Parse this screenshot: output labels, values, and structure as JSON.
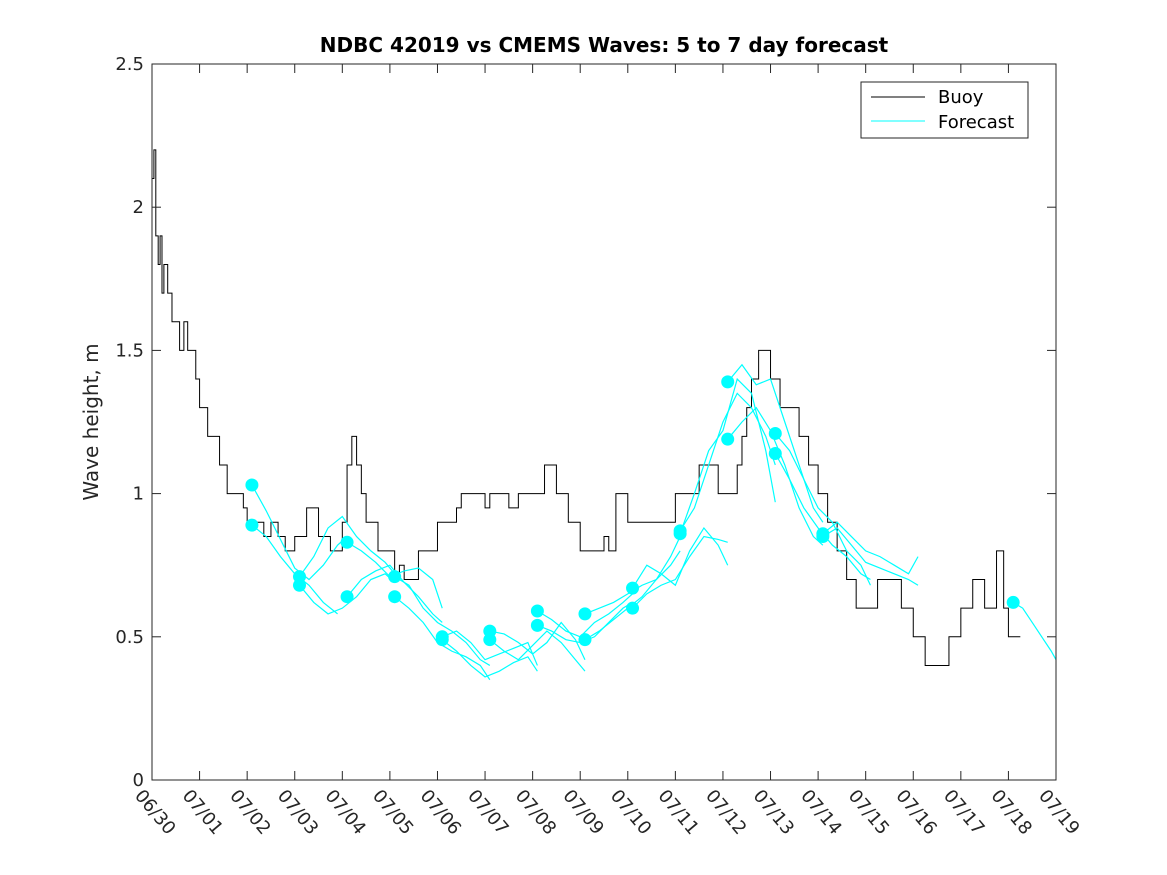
{
  "chart_data": {
    "type": "line",
    "title": "NDBC 42019 vs CMEMS Waves: 5 to 7 day forecast",
    "xlabel": "",
    "ylabel": "Wave height, m",
    "x_ticks": [
      "06/30",
      "07/01",
      "07/02",
      "07/03",
      "07/04",
      "07/05",
      "07/06",
      "07/07",
      "07/08",
      "07/09",
      "07/10",
      "07/11",
      "07/12",
      "07/13",
      "07/14",
      "07/15",
      "07/16",
      "07/17",
      "07/18",
      "07/19"
    ],
    "y_ticks": [
      "0",
      "0.5",
      "1",
      "1.5",
      "2",
      "2.5"
    ],
    "xlim": [
      0,
      19
    ],
    "ylim": [
      0,
      2.5
    ],
    "grid": false,
    "legend_position": "top-right",
    "colors": {
      "buoy": "#000000",
      "forecast": "#00ffff"
    },
    "series": [
      {
        "name": "Buoy",
        "x_days": [
          0.0,
          0.04,
          0.08,
          0.13,
          0.17,
          0.21,
          0.25,
          0.29,
          0.33,
          0.38,
          0.42,
          0.5,
          0.58,
          0.67,
          0.75,
          0.83,
          0.92,
          1.0,
          1.08,
          1.17,
          1.25,
          1.33,
          1.42,
          1.5,
          1.58,
          1.67,
          1.75,
          1.83,
          1.92,
          2.0,
          2.1,
          2.2,
          2.35,
          2.5,
          2.65,
          2.8,
          3.0,
          3.25,
          3.5,
          3.75,
          4.0,
          4.1,
          4.2,
          4.3,
          4.4,
          4.5,
          4.6,
          4.75,
          4.9,
          5.0,
          5.1,
          5.2,
          5.3,
          5.4,
          5.5,
          5.6,
          5.75,
          5.9,
          6.0,
          6.2,
          6.4,
          6.5,
          6.65,
          6.8,
          7.0,
          7.1,
          7.25,
          7.5,
          7.7,
          7.9,
          8.0,
          8.25,
          8.5,
          8.75,
          9.0,
          9.25,
          9.5,
          9.6,
          9.7,
          9.75,
          9.8,
          9.85,
          10.0,
          10.25,
          10.5,
          10.75,
          11.0,
          11.1,
          11.2,
          11.3,
          11.5,
          11.7,
          11.9,
          12.0,
          12.1,
          12.2,
          12.3,
          12.4,
          12.5,
          12.6,
          12.75,
          13.0,
          13.2,
          13.4,
          13.6,
          13.8,
          14.0,
          14.2,
          14.4,
          14.6,
          14.8,
          15.0,
          15.25,
          15.5,
          15.75,
          16.0,
          16.25,
          16.5,
          16.75,
          17.0,
          17.25,
          17.5,
          17.75,
          17.9,
          18.0,
          18.25
        ],
        "y": [
          2.1,
          2.2,
          1.9,
          1.8,
          1.9,
          1.7,
          1.8,
          1.8,
          1.7,
          1.7,
          1.6,
          1.6,
          1.5,
          1.6,
          1.5,
          1.5,
          1.4,
          1.3,
          1.3,
          1.2,
          1.2,
          1.2,
          1.1,
          1.1,
          1.0,
          1.0,
          1.0,
          1.0,
          0.95,
          0.9,
          0.9,
          0.9,
          0.85,
          0.9,
          0.85,
          0.8,
          0.85,
          0.95,
          0.85,
          0.8,
          0.9,
          1.1,
          1.2,
          1.1,
          1.0,
          0.9,
          0.9,
          0.8,
          0.8,
          0.8,
          0.7,
          0.75,
          0.7,
          0.7,
          0.7,
          0.8,
          0.8,
          0.8,
          0.9,
          0.9,
          0.95,
          1.0,
          1.0,
          1.0,
          0.95,
          1.0,
          1.0,
          0.95,
          1.0,
          1.0,
          1.0,
          1.1,
          1.0,
          0.9,
          0.8,
          0.8,
          0.85,
          0.8,
          0.8,
          1.0,
          1.0,
          1.0,
          0.9,
          0.9,
          0.9,
          0.9,
          1.0,
          1.0,
          1.0,
          1.0,
          1.1,
          1.1,
          1.0,
          1.0,
          1.0,
          1.0,
          1.1,
          1.2,
          1.3,
          1.4,
          1.5,
          1.4,
          1.3,
          1.3,
          1.2,
          1.1,
          1.0,
          0.9,
          0.8,
          0.7,
          0.6,
          0.6,
          0.7,
          0.7,
          0.6,
          0.5,
          0.4,
          0.4,
          0.5,
          0.6,
          0.7,
          0.6,
          0.8,
          0.6,
          0.5,
          0.5
        ]
      },
      {
        "name": "Forecast",
        "segments": [
          {
            "x": [
              2.1,
              2.4,
              2.7,
              3.0,
              3.3,
              3.6,
              3.9,
              4.1
            ],
            "y": [
              1.03,
              0.94,
              0.84,
              0.74,
              0.7,
              0.75,
              0.82,
              0.85
            ]
          },
          {
            "x": [
              2.1,
              2.4,
              2.7,
              3.0,
              3.3,
              3.6,
              3.9
            ],
            "y": [
              0.89,
              0.85,
              0.78,
              0.72,
              0.68,
              0.62,
              0.58
            ]
          },
          {
            "x": [
              3.1,
              3.4,
              3.7,
              4.0,
              4.3,
              4.6,
              4.9,
              5.1
            ],
            "y": [
              0.71,
              0.78,
              0.88,
              0.92,
              0.85,
              0.8,
              0.76,
              0.72
            ]
          },
          {
            "x": [
              3.1,
              3.4,
              3.7,
              4.0,
              4.3,
              4.6,
              4.9,
              5.1
            ],
            "y": [
              0.68,
              0.62,
              0.58,
              0.6,
              0.64,
              0.7,
              0.72,
              0.69
            ]
          },
          {
            "x": [
              4.1,
              4.4,
              4.7,
              5.0,
              5.3,
              5.6,
              5.9,
              6.1
            ],
            "y": [
              0.83,
              0.8,
              0.76,
              0.71,
              0.73,
              0.74,
              0.7,
              0.6
            ]
          },
          {
            "x": [
              4.1,
              4.4,
              4.7,
              5.0,
              5.3,
              5.6,
              5.9,
              6.1
            ],
            "y": [
              0.64,
              0.7,
              0.73,
              0.75,
              0.69,
              0.64,
              0.58,
              0.55
            ]
          },
          {
            "x": [
              5.1,
              5.4,
              5.7,
              6.0,
              6.3,
              6.6,
              6.9,
              7.1
            ],
            "y": [
              0.71,
              0.68,
              0.6,
              0.55,
              0.52,
              0.48,
              0.42,
              0.4
            ]
          },
          {
            "x": [
              5.1,
              5.4,
              5.7,
              6.0,
              6.3,
              6.6,
              6.9,
              7.1
            ],
            "y": [
              0.64,
              0.6,
              0.55,
              0.48,
              0.45,
              0.43,
              0.4,
              0.35
            ]
          },
          {
            "x": [
              6.1,
              6.4,
              6.7,
              7.0,
              7.3,
              7.6,
              7.9,
              8.1
            ],
            "y": [
              0.5,
              0.52,
              0.48,
              0.42,
              0.44,
              0.46,
              0.48,
              0.4
            ]
          },
          {
            "x": [
              6.1,
              6.4,
              6.7,
              7.0,
              7.3,
              7.6,
              7.9,
              8.1
            ],
            "y": [
              0.49,
              0.45,
              0.4,
              0.36,
              0.38,
              0.41,
              0.43,
              0.38
            ]
          },
          {
            "x": [
              7.1,
              7.4,
              7.7,
              8.0,
              8.3,
              8.6,
              8.9,
              9.1
            ],
            "y": [
              0.52,
              0.51,
              0.48,
              0.44,
              0.48,
              0.55,
              0.49,
              0.42
            ]
          },
          {
            "x": [
              7.1,
              7.4,
              7.7,
              8.0,
              8.3,
              8.6,
              8.9,
              9.1
            ],
            "y": [
              0.49,
              0.45,
              0.42,
              0.47,
              0.52,
              0.48,
              0.42,
              0.38
            ]
          },
          {
            "x": [
              8.1,
              8.4,
              8.7,
              9.0,
              9.3,
              9.6,
              9.9,
              10.1
            ],
            "y": [
              0.59,
              0.56,
              0.52,
              0.5,
              0.55,
              0.58,
              0.62,
              0.65
            ]
          },
          {
            "x": [
              8.1,
              8.4,
              8.7,
              9.0,
              9.3,
              9.6,
              9.9,
              10.1
            ],
            "y": [
              0.54,
              0.52,
              0.49,
              0.48,
              0.5,
              0.55,
              0.6,
              0.62
            ]
          },
          {
            "x": [
              9.1,
              9.4,
              9.7,
              10.0,
              10.3,
              10.6,
              10.9,
              11.1
            ],
            "y": [
              0.58,
              0.6,
              0.62,
              0.65,
              0.68,
              0.7,
              0.78,
              0.85
            ]
          },
          {
            "x": [
              9.1,
              9.4,
              9.7,
              10.0,
              10.3,
              10.6,
              10.9,
              11.1
            ],
            "y": [
              0.49,
              0.52,
              0.56,
              0.6,
              0.64,
              0.7,
              0.75,
              0.8
            ]
          },
          {
            "x": [
              10.1,
              10.4,
              10.7,
              11.0,
              11.3,
              11.6,
              11.9,
              12.1
            ],
            "y": [
              0.67,
              0.75,
              0.72,
              0.68,
              0.8,
              0.88,
              0.82,
              0.75
            ]
          },
          {
            "x": [
              10.1,
              10.4,
              10.7,
              11.0,
              11.3,
              11.6,
              11.9,
              12.1
            ],
            "y": [
              0.6,
              0.65,
              0.68,
              0.7,
              0.78,
              0.85,
              0.84,
              0.83
            ]
          },
          {
            "x": [
              11.1,
              11.4,
              11.7,
              12.0,
              12.3,
              12.6,
              12.9,
              13.1
            ],
            "y": [
              0.87,
              0.95,
              1.1,
              1.25,
              1.35,
              1.3,
              1.2,
              1.1
            ]
          },
          {
            "x": [
              11.1,
              11.4,
              11.7,
              12.0,
              12.3,
              12.6,
              12.9,
              13.1
            ],
            "y": [
              0.86,
              1.0,
              1.15,
              1.22,
              1.4,
              1.35,
              1.15,
              0.97
            ]
          },
          {
            "x": [
              12.1,
              12.4,
              12.7,
              13.0,
              13.3,
              13.6,
              13.9,
              14.1
            ],
            "y": [
              1.39,
              1.45,
              1.38,
              1.4,
              1.25,
              1.1,
              0.95,
              0.9
            ]
          },
          {
            "x": [
              12.1,
              12.4,
              12.7,
              13.0,
              13.3,
              13.6,
              13.9,
              14.1
            ],
            "y": [
              1.19,
              1.25,
              1.3,
              1.22,
              1.1,
              0.95,
              0.85,
              0.82
            ]
          },
          {
            "x": [
              13.1,
              13.4,
              13.7,
              14.0,
              14.3,
              14.6,
              14.9,
              15.1
            ],
            "y": [
              1.21,
              1.15,
              1.05,
              0.95,
              0.9,
              0.8,
              0.75,
              0.68
            ]
          },
          {
            "x": [
              13.1,
              13.4,
              13.7,
              14.0,
              14.3,
              14.6,
              14.9,
              15.1
            ],
            "y": [
              1.14,
              1.05,
              0.95,
              0.88,
              0.82,
              0.78,
              0.72,
              0.7
            ]
          },
          {
            "x": [
              14.1,
              14.4,
              14.7,
              15.0,
              15.3,
              15.6,
              15.9,
              16.1
            ],
            "y": [
              0.86,
              0.9,
              0.85,
              0.8,
              0.78,
              0.75,
              0.72,
              0.78
            ]
          },
          {
            "x": [
              14.1,
              14.4,
              14.7,
              15.0,
              15.3,
              15.6,
              15.9,
              16.1
            ],
            "y": [
              0.85,
              0.88,
              0.82,
              0.76,
              0.74,
              0.72,
              0.7,
              0.68
            ]
          },
          {
            "x": [
              18.1,
              18.3,
              18.5,
              18.7,
              18.9,
              19.0
            ],
            "y": [
              0.62,
              0.6,
              0.55,
              0.5,
              0.45,
              0.42
            ]
          }
        ],
        "markers": {
          "x": [
            2.1,
            2.1,
            3.1,
            3.1,
            4.1,
            4.1,
            5.1,
            5.1,
            6.1,
            6.1,
            7.1,
            7.1,
            8.1,
            8.1,
            9.1,
            9.1,
            10.1,
            10.1,
            11.1,
            11.1,
            12.1,
            12.1,
            13.1,
            13.1,
            14.1,
            14.1,
            18.1
          ],
          "y": [
            1.03,
            0.89,
            0.71,
            0.68,
            0.83,
            0.64,
            0.71,
            0.64,
            0.5,
            0.49,
            0.52,
            0.49,
            0.59,
            0.54,
            0.58,
            0.49,
            0.67,
            0.6,
            0.87,
            0.86,
            1.39,
            1.19,
            1.21,
            1.14,
            0.86,
            0.85,
            0.62
          ]
        }
      }
    ]
  }
}
